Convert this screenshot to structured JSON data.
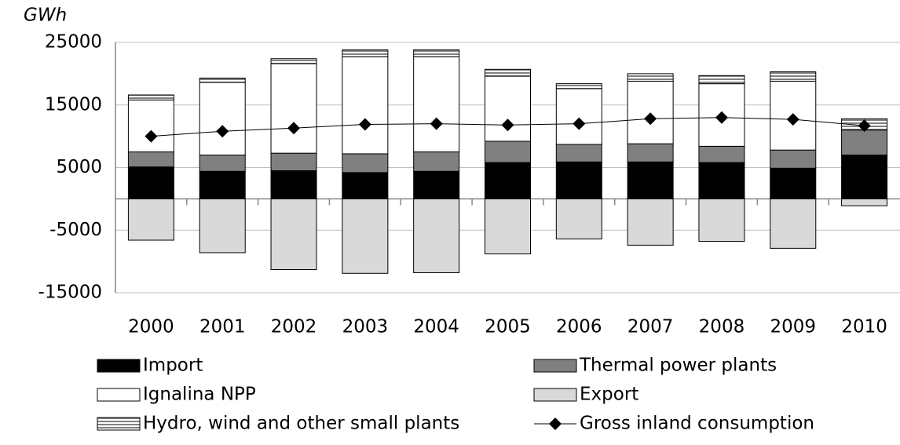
{
  "chart_data": {
    "type": "bar",
    "y_label": "GWh",
    "categories": [
      "2000",
      "2001",
      "2002",
      "2003",
      "2004",
      "2005",
      "2006",
      "2007",
      "2008",
      "2009",
      "2010"
    ],
    "ylim": [
      -15000,
      25000
    ],
    "yticks": [
      -15000,
      -5000,
      5000,
      15000,
      25000
    ],
    "grid": true,
    "series": [
      {
        "name": "Import",
        "color": "#000000",
        "stack": "pos",
        "values": [
          5100,
          4400,
          4500,
          4200,
          4400,
          5800,
          5900,
          5900,
          5800,
          4900,
          7000
        ]
      },
      {
        "name": "Thermal power plants",
        "color": "#808080",
        "stack": "pos",
        "values": [
          2400,
          2600,
          2800,
          3000,
          3100,
          3400,
          2800,
          2900,
          2600,
          2900,
          4000
        ]
      },
      {
        "name": "Ignalina NPP",
        "color": "#ffffff",
        "stack": "pos",
        "values": [
          8300,
          11600,
          14300,
          15500,
          15200,
          10400,
          8900,
          10000,
          10000,
          11000,
          0
        ]
      },
      {
        "name": "Export",
        "color": "#d9d9d9",
        "stack": "neg",
        "values": [
          -6600,
          -8600,
          -11300,
          -11900,
          -11800,
          -8800,
          -6400,
          -7400,
          -6800,
          -7900,
          -1100
        ]
      },
      {
        "name": "Hydro, wind and other small plants",
        "color": "#a6a6a6",
        "hatch": "horizontal",
        "stack": "pos",
        "values": [
          800,
          700,
          800,
          1100,
          1100,
          1100,
          800,
          1200,
          1300,
          1500,
          1800
        ]
      },
      {
        "name": "Gross inland consumption",
        "color": "#000000",
        "type": "line",
        "values": [
          10000,
          10800,
          11300,
          11900,
          12000,
          11800,
          12000,
          12800,
          13000,
          12700,
          11700
        ]
      }
    ]
  }
}
